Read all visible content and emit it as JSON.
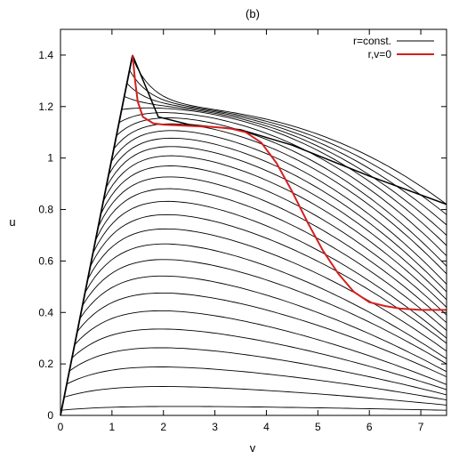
{
  "chart_data": {
    "type": "line",
    "title": "(b)",
    "xlabel": "v",
    "ylabel": "u",
    "xlim": [
      0,
      7.5
    ],
    "ylim": [
      0,
      1.5
    ],
    "x_ticks": [
      "0",
      "1",
      "2",
      "3",
      "4",
      "5",
      "6",
      "7"
    ],
    "y_ticks": [
      "0",
      "0.2",
      "0.4",
      "0.6",
      "0.8",
      "1",
      "1.2",
      "1.4"
    ],
    "grid": false,
    "legend_position": "top-right",
    "colors": {
      "const_lines": "#000000",
      "rv_zero": "#d42020"
    },
    "series": [
      {
        "name": "r=const.",
        "description_values": {
          "apex": [
            1.4,
            1.4
          ],
          "envelope_from": [
            0,
            0
          ],
          "curve_family_end_u_at_v_7_5": [
            0.82,
            0.78,
            0.74,
            0.7,
            0.66,
            0.62,
            0.58,
            0.55,
            0.51,
            0.48,
            0.45,
            0.42,
            0.39,
            0.36,
            0.33,
            0.3,
            0.28,
            0.25,
            0.22,
            0.2,
            0.17,
            0.15,
            0.12,
            0.1,
            0.08,
            0.06,
            0.04,
            0.02
          ]
        }
      },
      {
        "name": "r,v=0",
        "x": [
          1.4,
          1.45,
          1.5,
          1.6,
          1.8,
          2.0,
          2.5,
          3.0,
          3.3,
          3.6,
          3.9,
          4.2,
          4.5,
          4.8,
          5.1,
          5.4,
          5.7,
          6.0,
          6.3,
          6.6,
          7.0,
          7.5
        ],
        "y": [
          1.4,
          1.3,
          1.22,
          1.16,
          1.135,
          1.13,
          1.125,
          1.12,
          1.115,
          1.1,
          1.06,
          0.98,
          0.87,
          0.75,
          0.64,
          0.55,
          0.48,
          0.44,
          0.425,
          0.415,
          0.41,
          0.41
        ]
      }
    ]
  },
  "legend": {
    "entries": [
      {
        "label": "r=const.",
        "color": "#000000"
      },
      {
        "label": "r,v=0",
        "color": "#d42020"
      }
    ]
  }
}
